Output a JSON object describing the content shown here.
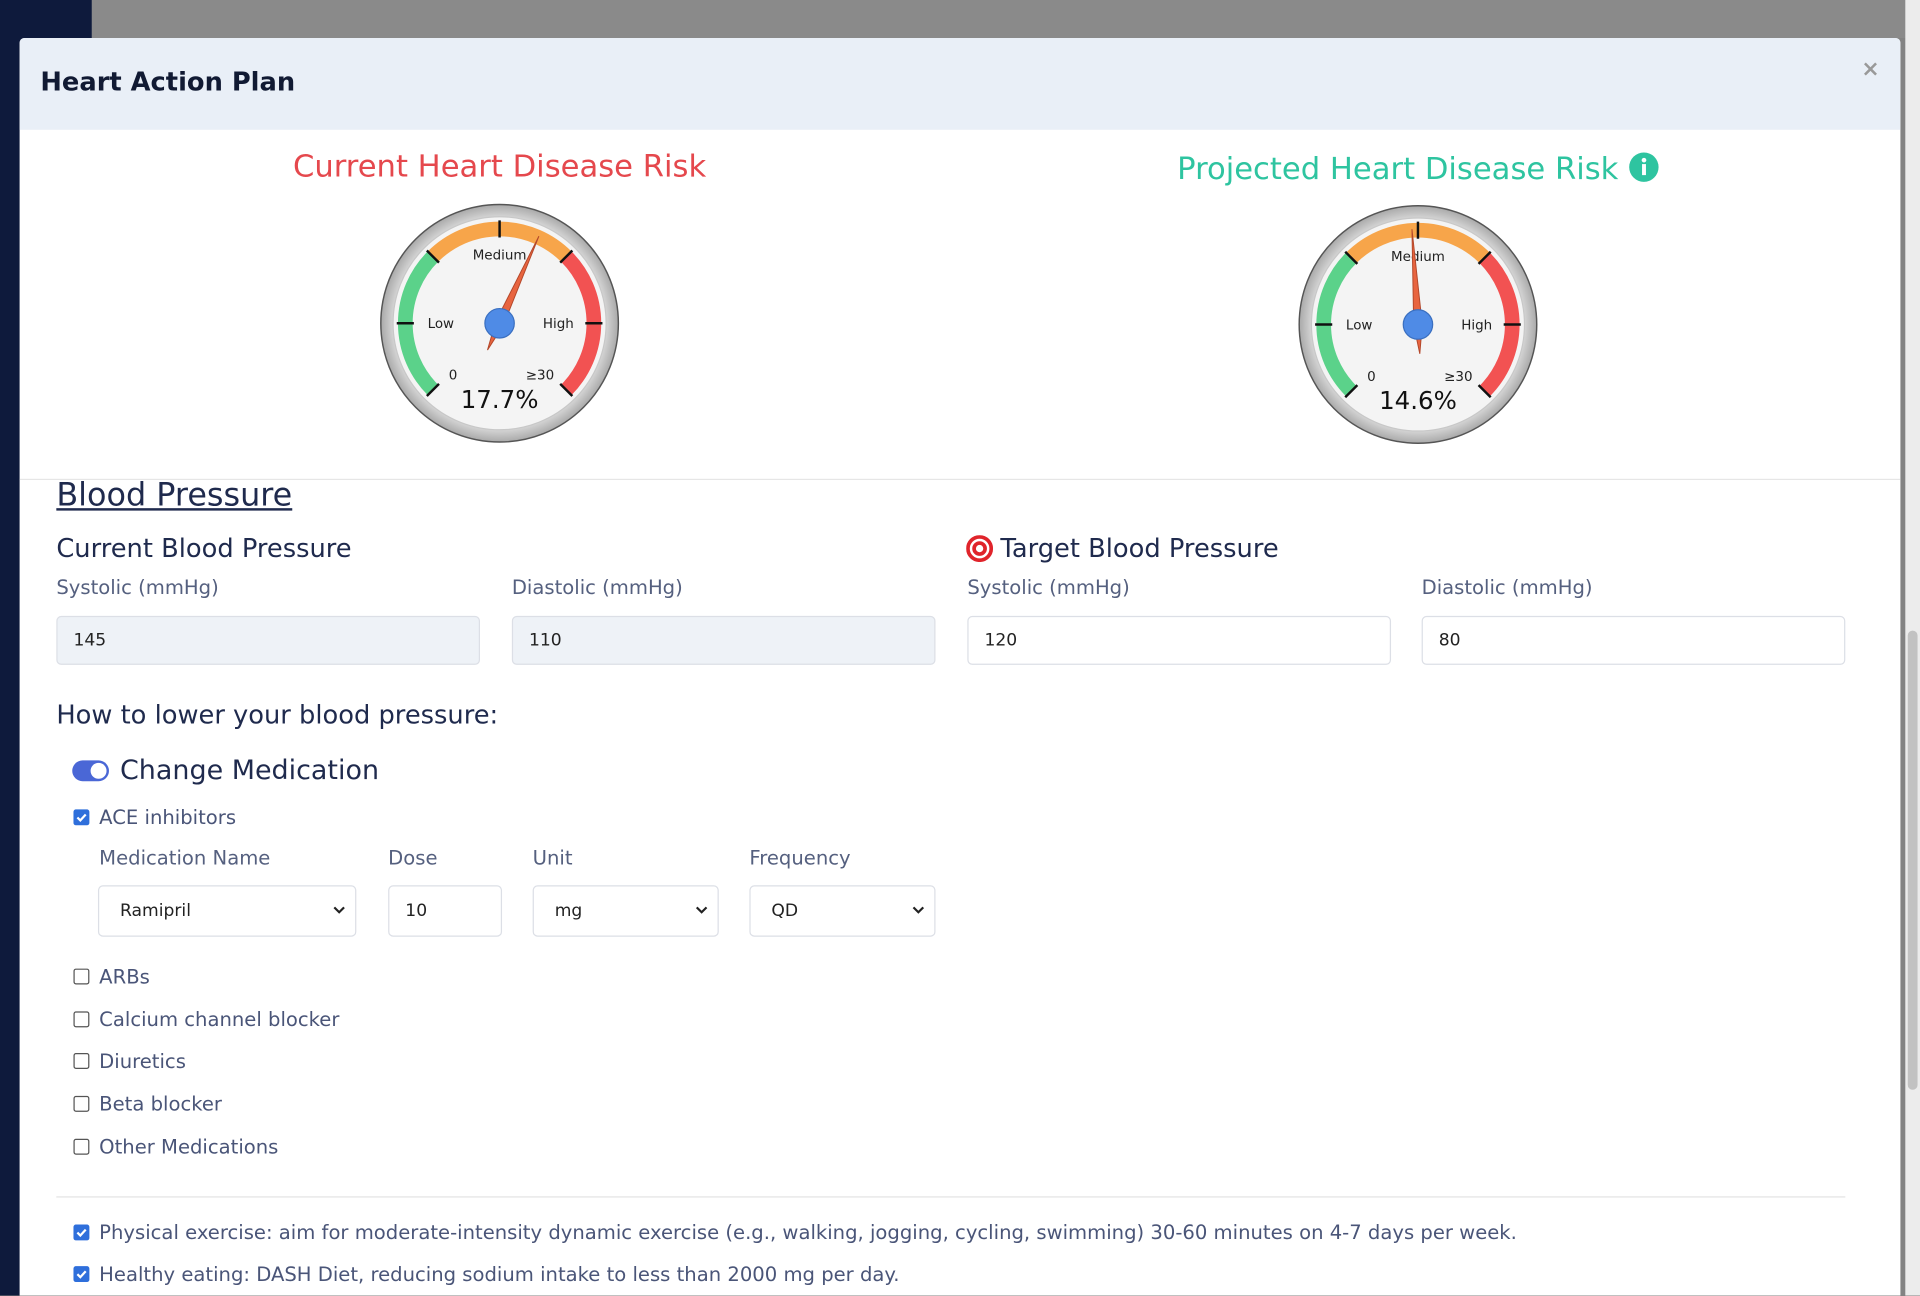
{
  "header": {
    "title": "Heart Action Plan"
  },
  "gauges": [
    {
      "title": "Current Heart Disease Risk",
      "color": "#e5484d",
      "value": 17.7,
      "value_label": "17.7%",
      "min": 0,
      "max": 30,
      "min_label": "0",
      "max_label": "≥30",
      "zones": [
        "Low",
        "Medium",
        "High"
      ]
    },
    {
      "title": "Projected Heart Disease Risk",
      "color": "#2ec4a0",
      "value": 14.6,
      "value_label": "14.6%",
      "min": 0,
      "max": 30,
      "min_label": "0",
      "max_label": "≥30",
      "zones": [
        "Low",
        "Medium",
        "High"
      ]
    }
  ],
  "blood_pressure": {
    "title": "Blood Pressure",
    "current": {
      "title": "Current Blood Pressure",
      "systolic_label": "Systolic (mmHg)",
      "systolic": 145,
      "diastolic_label": "Diastolic (mmHg)",
      "diastolic": 110
    },
    "target": {
      "title": "Target Blood Pressure",
      "systolic_label": "Systolic (mmHg)",
      "systolic": 120,
      "diastolic_label": "Diastolic (mmHg)",
      "diastolic": 80
    }
  },
  "lowering": {
    "title": "How to lower your blood pressure:",
    "medication": {
      "title": "Change Medication",
      "enabled": true,
      "options": [
        {
          "name": "ACE inhibitors",
          "checked": true
        },
        {
          "name": "ARBs",
          "checked": false
        },
        {
          "name": "Calcium channel blocker",
          "checked": false
        },
        {
          "name": "Diuretics",
          "checked": false
        },
        {
          "name": "Beta blocker",
          "checked": false
        },
        {
          "name": "Other Medications",
          "checked": false
        }
      ],
      "fields": {
        "name_label": "Medication Name",
        "name": "Ramipril",
        "dose_label": "Dose",
        "dose": 10,
        "unit_label": "Unit",
        "unit": "mg",
        "frequency_label": "Frequency",
        "frequency": "QD"
      }
    },
    "lifestyle": [
      {
        "text": "Physical exercise: aim for moderate-intensity dynamic exercise (e.g., walking, jogging, cycling, swimming) 30-60 minutes on 4-7 days per week.",
        "checked": true
      },
      {
        "text": "Healthy eating: DASH Diet, reducing sodium intake to less than 2000 mg per day.",
        "checked": true
      }
    ]
  }
}
